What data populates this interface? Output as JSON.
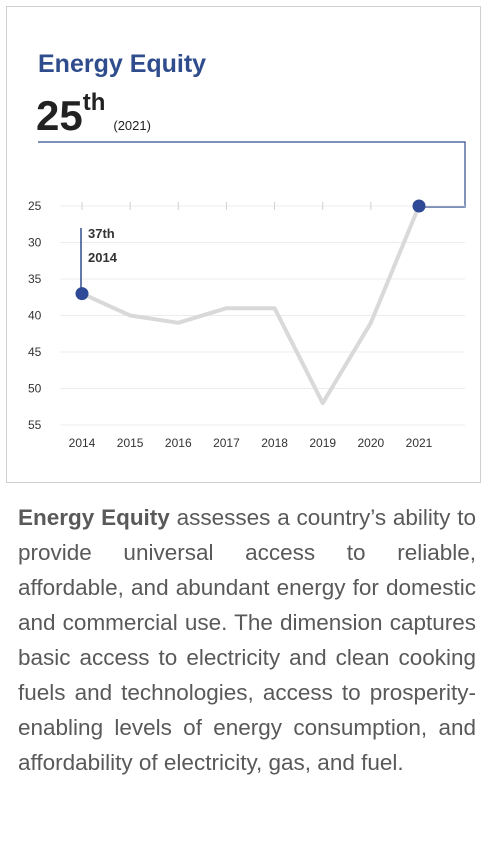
{
  "header": {
    "title": "Energy Equity",
    "rank": "25",
    "rank_suffix": "th",
    "rank_year": "(2021)"
  },
  "annotation": {
    "rank": "37th",
    "year": "2014"
  },
  "description": {
    "lead": "Energy Equity",
    "body": " assesses a country’s ability to provide universal access to reliable, affordable, and abundant energy for domestic and commercial use. The dimension captures basic access to electricity and clean cooking fuels and technologies, access to prosperity-enabling levels of energy consumption, and affordability of electricity, gas, and fuel."
  },
  "colors": {
    "accent": "#2f4c8c",
    "line": "#d9d9d9",
    "marker": "#2e4a96"
  },
  "chart_data": {
    "type": "line",
    "title": "Energy Equity",
    "x": [
      "2014",
      "2015",
      "2016",
      "2017",
      "2018",
      "2019",
      "2020",
      "2021"
    ],
    "series": [
      {
        "values": [
          37,
          40,
          41,
          39,
          39,
          52,
          41,
          25
        ]
      }
    ],
    "yticks": [
      25,
      30,
      35,
      40,
      45,
      50,
      55
    ],
    "ylim": [
      25,
      55
    ],
    "y_inverted": true,
    "highlight": [
      {
        "x": "2014",
        "y": 37
      },
      {
        "x": "2021",
        "y": 25
      }
    ]
  }
}
